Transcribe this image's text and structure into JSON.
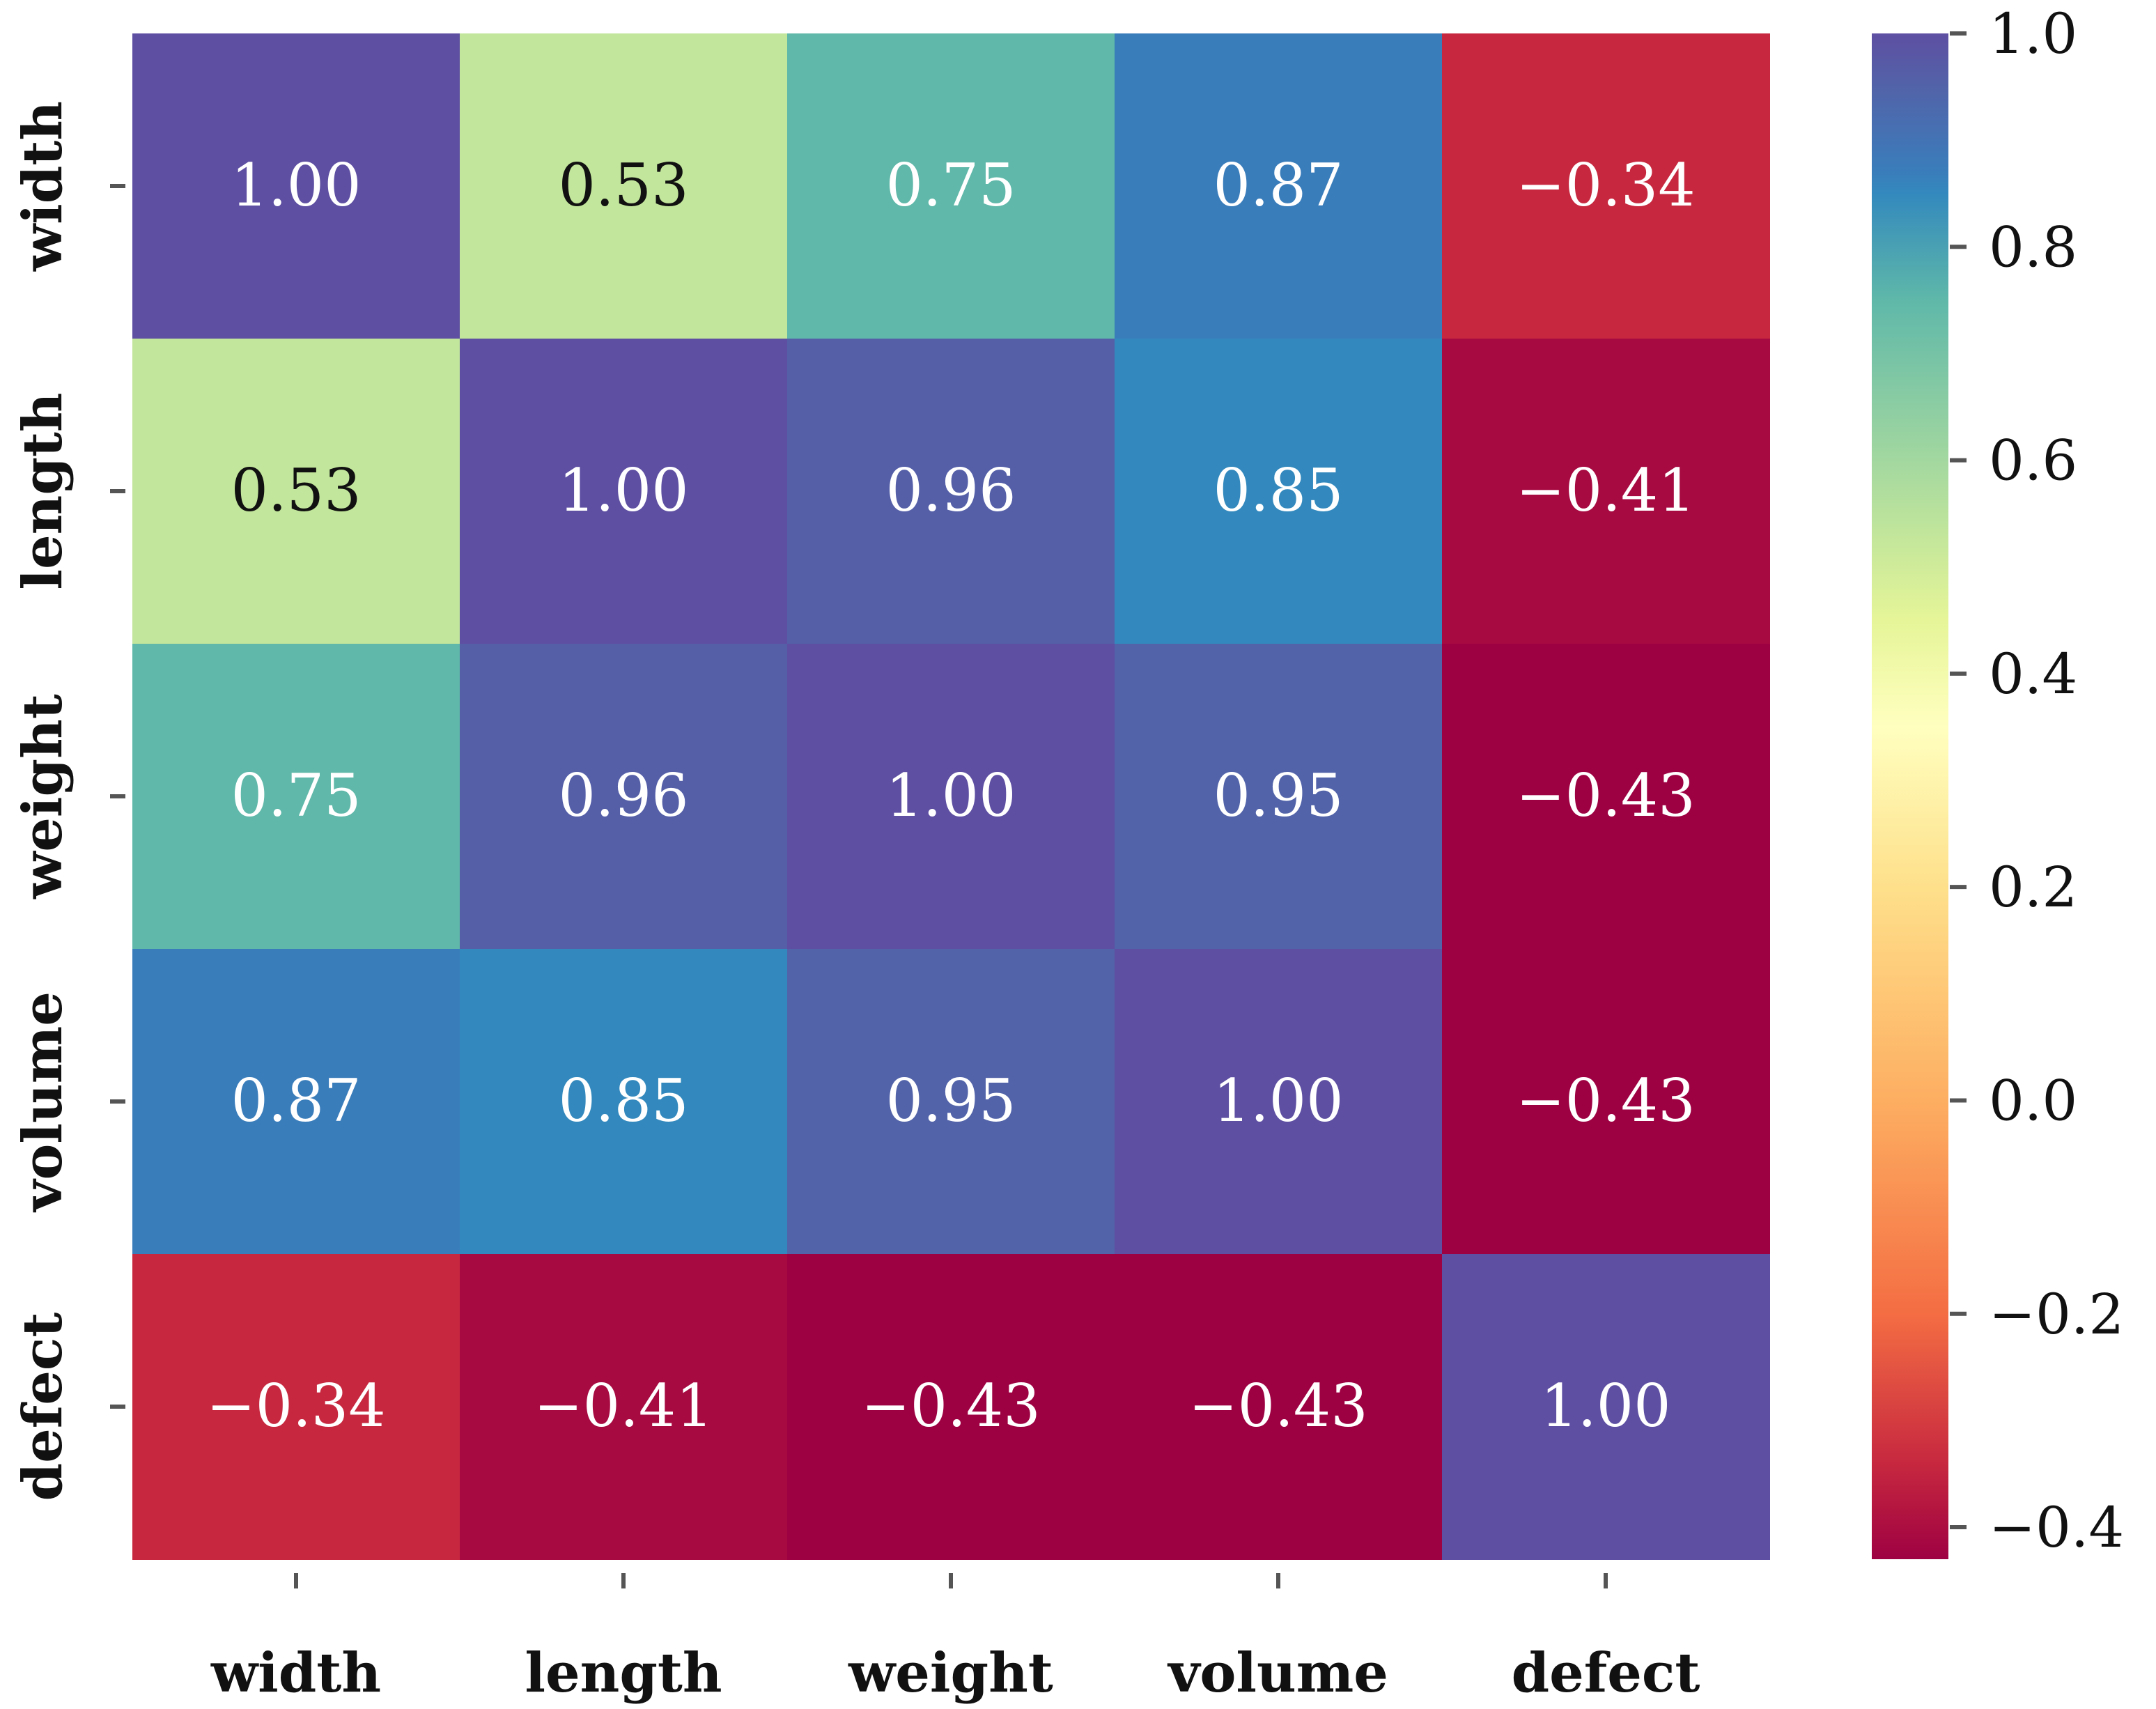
{
  "chart_data": {
    "type": "heatmap",
    "title": "",
    "xlabel": "",
    "ylabel": "",
    "x_labels": [
      "width",
      "length",
      "weight",
      "volume",
      "defect"
    ],
    "y_labels": [
      "width",
      "length",
      "weight",
      "volume",
      "defect"
    ],
    "values": [
      [
        1.0,
        0.53,
        0.75,
        0.87,
        -0.34
      ],
      [
        0.53,
        1.0,
        0.96,
        0.85,
        -0.41
      ],
      [
        0.75,
        0.96,
        1.0,
        0.95,
        -0.43
      ],
      [
        0.87,
        0.85,
        0.95,
        1.0,
        -0.43
      ],
      [
        -0.34,
        -0.41,
        -0.43,
        -0.43,
        1.0
      ]
    ],
    "cell_labels": [
      [
        "1.00",
        "0.53",
        "0.75",
        "0.87",
        "−0.34"
      ],
      [
        "0.53",
        "1.00",
        "0.96",
        "0.85",
        "−0.41"
      ],
      [
        "0.75",
        "0.96",
        "1.00",
        "0.95",
        "−0.43"
      ],
      [
        "0.87",
        "0.85",
        "0.95",
        "1.00",
        "−0.43"
      ],
      [
        "−0.34",
        "−0.41",
        "−0.43",
        "−0.43",
        "1.00"
      ]
    ],
    "colormap": "Spectral",
    "colormap_stops": [
      {
        "value": -0.43,
        "color": "#9e0142"
      },
      {
        "value": -0.34,
        "color": "#c7283f"
      },
      {
        "value": -0.2,
        "color": "#f46d43"
      },
      {
        "value": 0.0,
        "color": "#fdae61"
      },
      {
        "value": 0.2,
        "color": "#fee08b"
      },
      {
        "value": 0.35,
        "color": "#ffffbf"
      },
      {
        "value": 0.45,
        "color": "#e6f598"
      },
      {
        "value": 0.53,
        "color": "#c2e69b"
      },
      {
        "value": 0.75,
        "color": "#5fb8a9"
      },
      {
        "value": 0.85,
        "color": "#3389bd"
      },
      {
        "value": 0.87,
        "color": "#3a7dbb"
      },
      {
        "value": 0.95,
        "color": "#5263a9"
      },
      {
        "value": 1.0,
        "color": "#5e4fa2"
      }
    ],
    "dark_text_values": [
      "0.53"
    ],
    "text_color_light": "#ffffff",
    "text_color_dark": "#111111",
    "vmin": -0.43,
    "vmax": 1.0,
    "colorbar": {
      "ticks": [
        1.0,
        0.8,
        0.6,
        0.4,
        0.2,
        0.0,
        -0.2,
        -0.4
      ],
      "tick_labels": [
        "1.0",
        "0.8",
        "0.6",
        "0.4",
        "0.2",
        "0.0",
        "−0.2",
        "−0.4"
      ],
      "placement": "right"
    }
  }
}
